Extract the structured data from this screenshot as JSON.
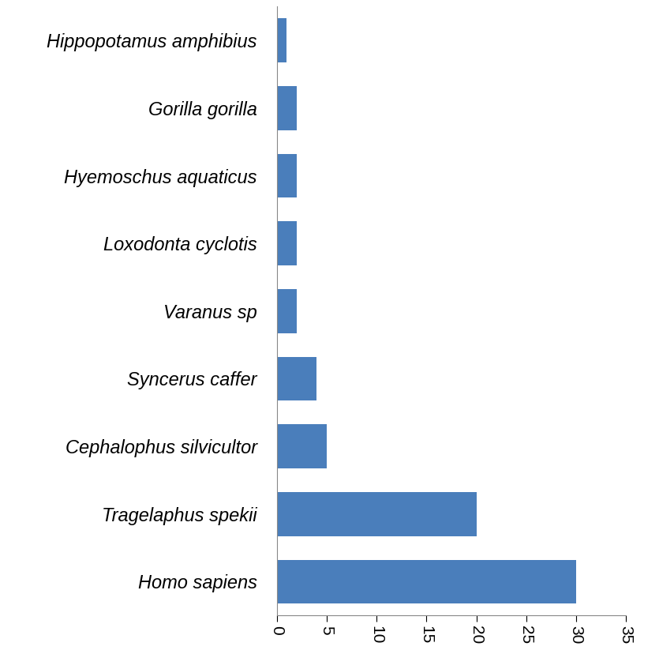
{
  "chart_data": {
    "type": "bar",
    "orientation": "horizontal",
    "categories": [
      "Hippopotamus amphibius",
      "Gorilla gorilla",
      "Hyemoschus aquaticus",
      "Loxodonta cyclotis",
      "Varanus sp",
      "Syncerus caffer",
      "Cephalophus silvicultor",
      "Tragelaphus spekii",
      "Homo sapiens"
    ],
    "values": [
      1,
      2,
      2,
      2,
      2,
      4,
      5,
      20,
      30
    ],
    "color": "#4a7ebb",
    "xlim": [
      0,
      35
    ],
    "xticks": [
      0,
      5,
      10,
      15,
      20,
      25,
      30,
      35
    ],
    "grid": false
  }
}
